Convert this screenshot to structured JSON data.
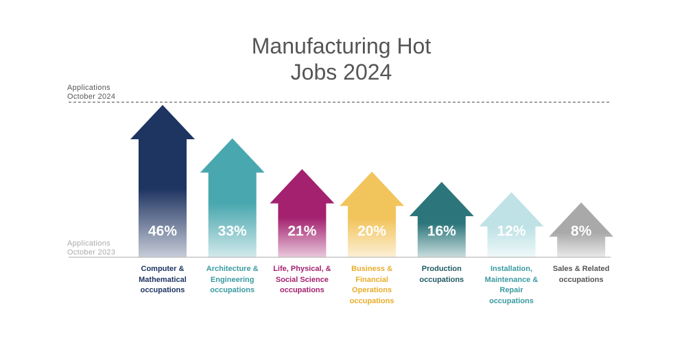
{
  "chart_data": {
    "type": "arrow",
    "title": "Manufacturing Hot Jobs 2024",
    "reference_top_label": "Applications October 2024",
    "reference_bottom_label": "Applications October 2023",
    "categories": [
      "Computer & Mathematical occupations",
      "Architecture & Engineering occupations",
      "Life, Physical, & Social Science occupations",
      "Business & Financial Operations occupations",
      "Production occupations",
      "Installation, Maintenance & Repair occupations",
      "Sales & Related occupations"
    ],
    "values": [
      46,
      33,
      21,
      20,
      16,
      12,
      8
    ],
    "value_labels": [
      "46%",
      "33%",
      "21%",
      "20%",
      "16%",
      "12%",
      "8%"
    ],
    "colors": [
      "#1e3461",
      "#49a8af",
      "#a3216f",
      "#f2c45c",
      "#2c767b",
      "#bfe2e6",
      "#a9a9a9"
    ],
    "label_colors": [
      "#1e3461",
      "#3a9aa1",
      "#a3216f",
      "#e8ac2a",
      "#1f5a63",
      "#3a9aa1",
      "#555555"
    ]
  }
}
